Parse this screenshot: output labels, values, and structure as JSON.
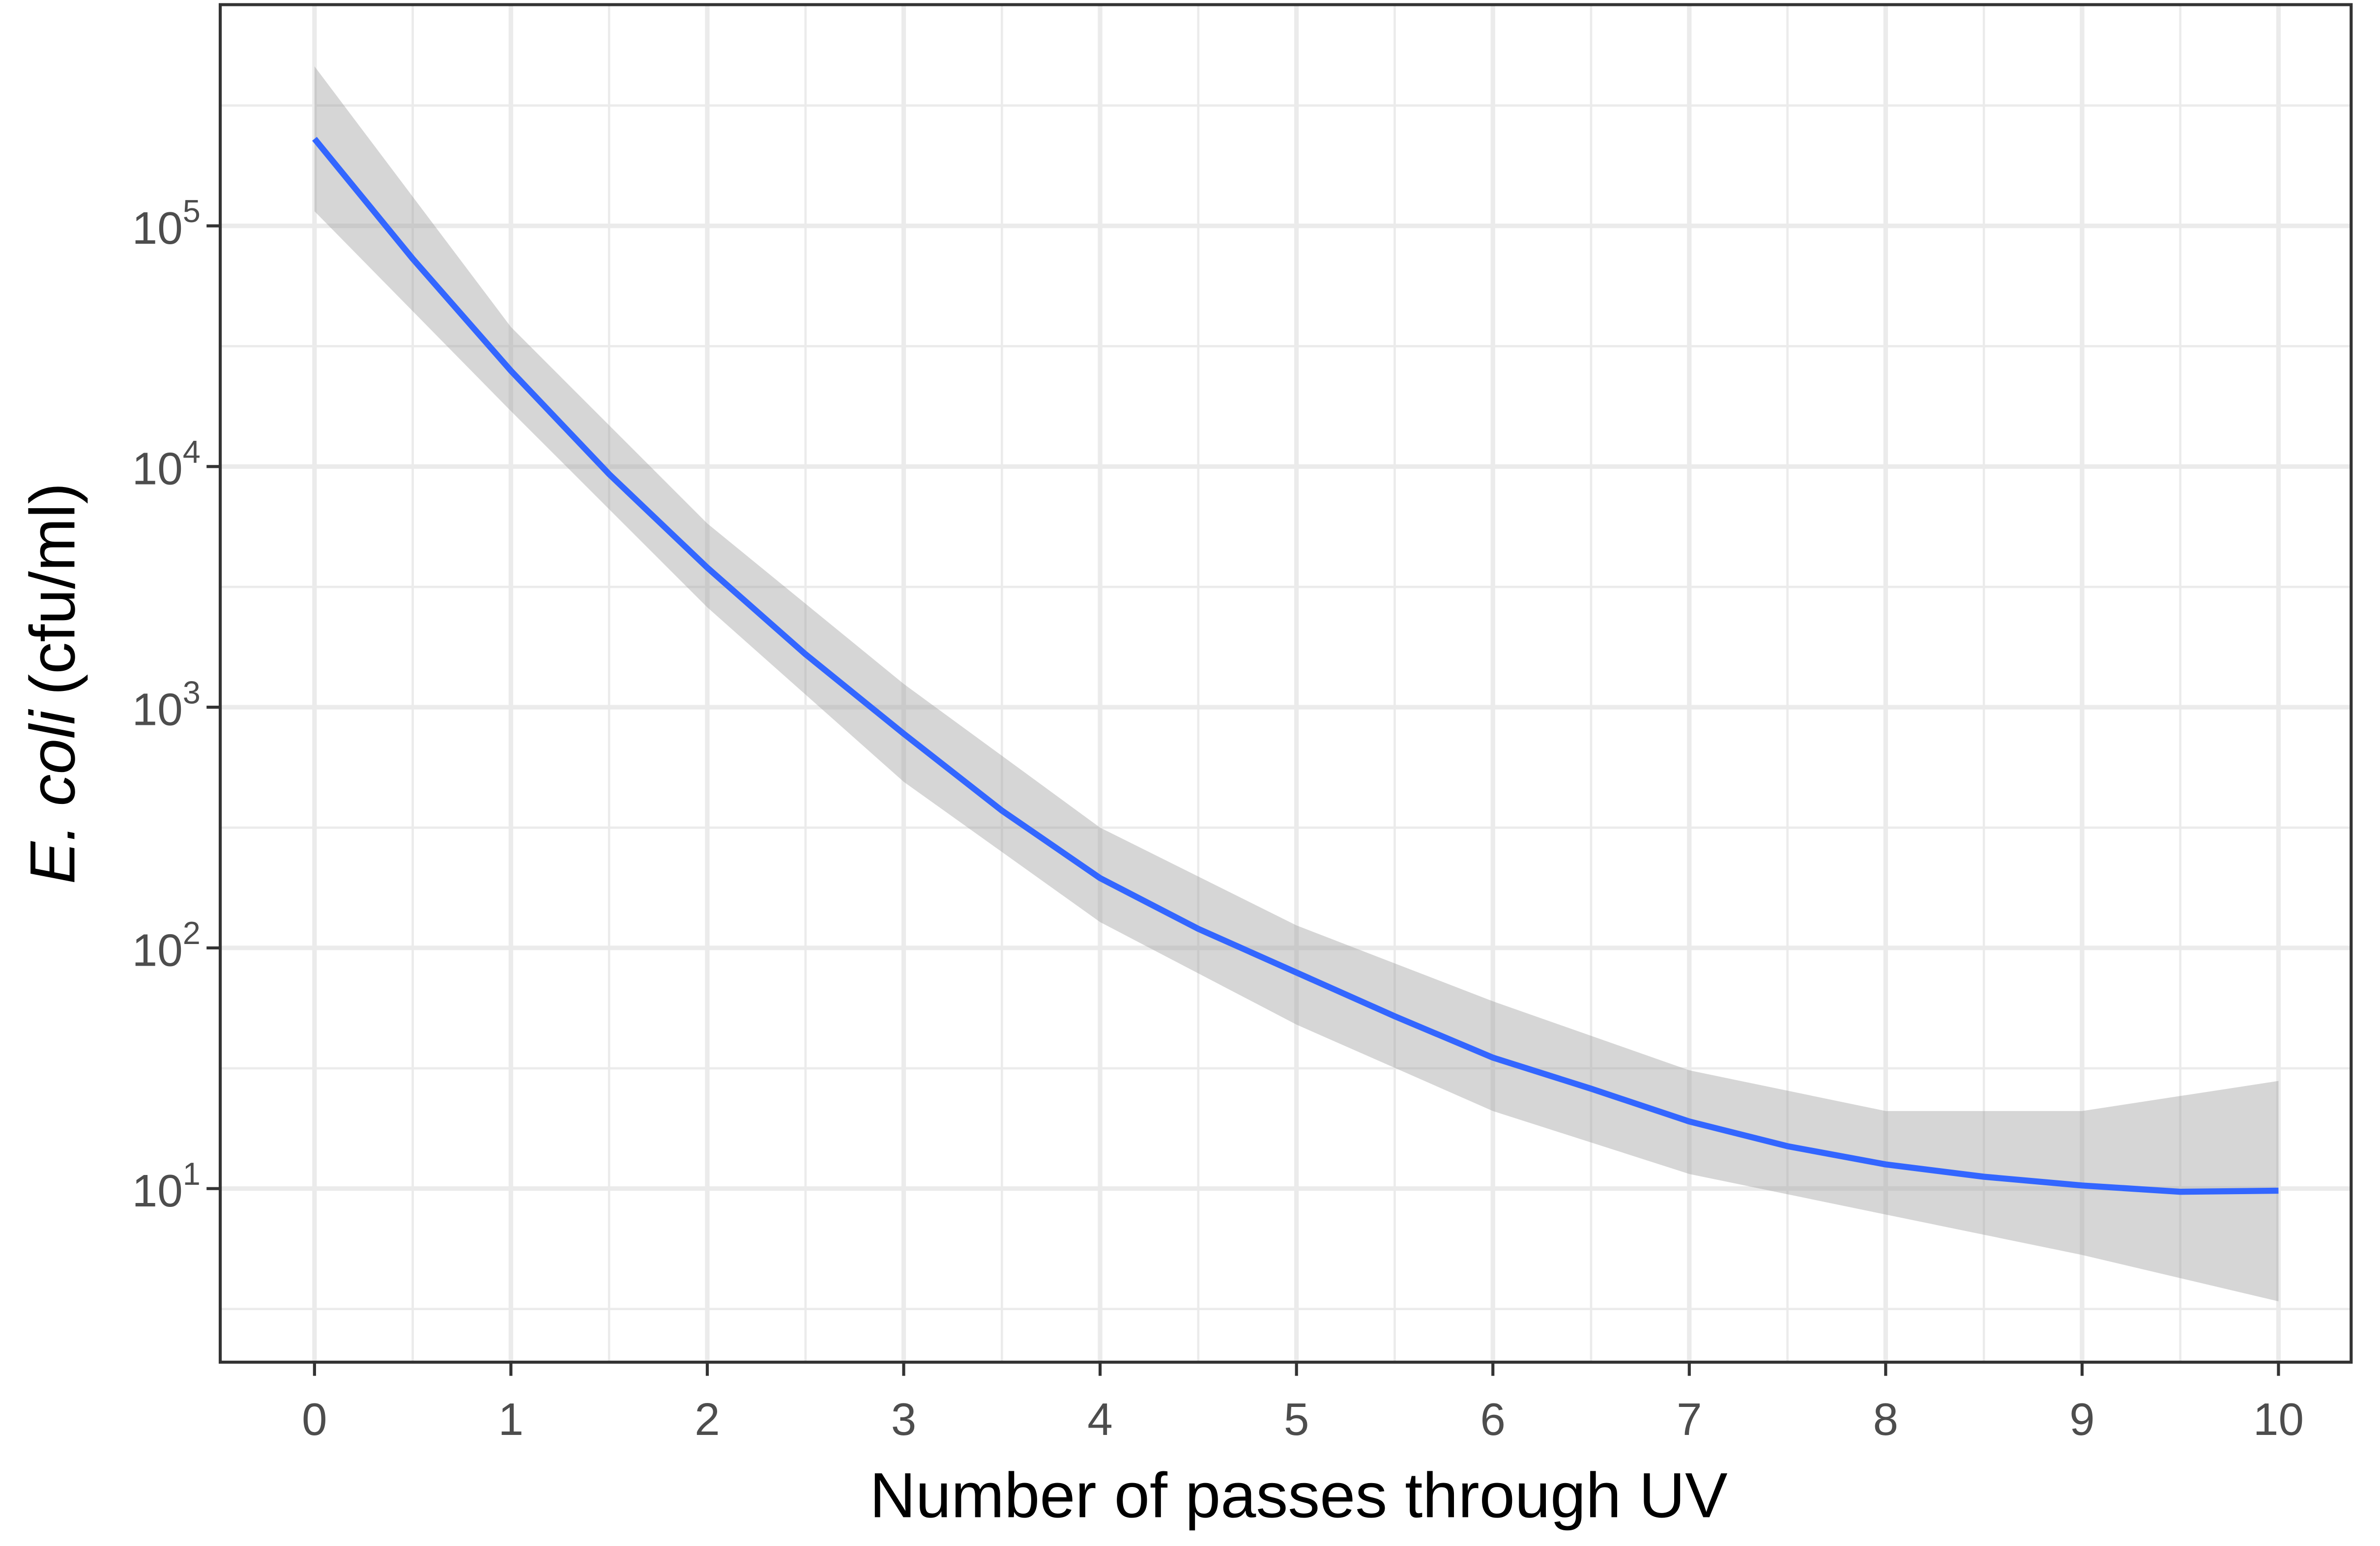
{
  "chart_data": {
    "type": "line",
    "xlabel": "Number of passes through UV",
    "ylabel": {
      "italic": "E. coli",
      "rest": "(cfu/ml)"
    },
    "xlim": [
      -0.48,
      10.37
    ],
    "ylim": [
      1.9,
      830000
    ],
    "log_y": true,
    "grid": true,
    "xticks": [
      0,
      1,
      2,
      3,
      4,
      5,
      6,
      7,
      8,
      9,
      10
    ],
    "xminor": [
      0.5,
      1.5,
      2.5,
      3.5,
      4.5,
      5.5,
      6.5,
      7.5,
      8.5,
      9.5
    ],
    "yticks": [
      {
        "value": 10,
        "label": "10^1"
      },
      {
        "value": 100,
        "label": "10^2"
      },
      {
        "value": 1000,
        "label": "10^3"
      },
      {
        "value": 10000,
        "label": "10^4"
      },
      {
        "value": 100000,
        "label": "10^5"
      }
    ],
    "yminor": [
      3.16,
      31.6,
      316,
      3162,
      31623,
      316228
    ],
    "series": [
      {
        "color": "#3366ff",
        "x": [
          0,
          0.5,
          1,
          1.5,
          2,
          2.5,
          3,
          3.5,
          4,
          4.5,
          5,
          5.5,
          6,
          6.5,
          7,
          7.5,
          8,
          8.5,
          9,
          9.5,
          10
        ],
        "values": [
          230000,
          73000,
          25000,
          9300,
          3800,
          1660,
          776,
          372,
          195,
          120,
          79,
          52,
          35,
          26,
          19,
          15,
          12.6,
          11.2,
          10.3,
          9.7,
          9.8
        ]
      }
    ],
    "band": {
      "color": "#999999",
      "x": [
        0,
        1,
        2,
        3,
        4,
        5,
        6,
        7,
        8,
        9,
        10
      ],
      "lower": [
        115000,
        17000,
        2600,
        490,
        128,
        48,
        21,
        11.5,
        7.8,
        5.3,
        3.4
      ],
      "upper": [
        460000,
        38000,
        5800,
        1250,
        316,
        124,
        60,
        31,
        21,
        21,
        28
      ]
    }
  }
}
